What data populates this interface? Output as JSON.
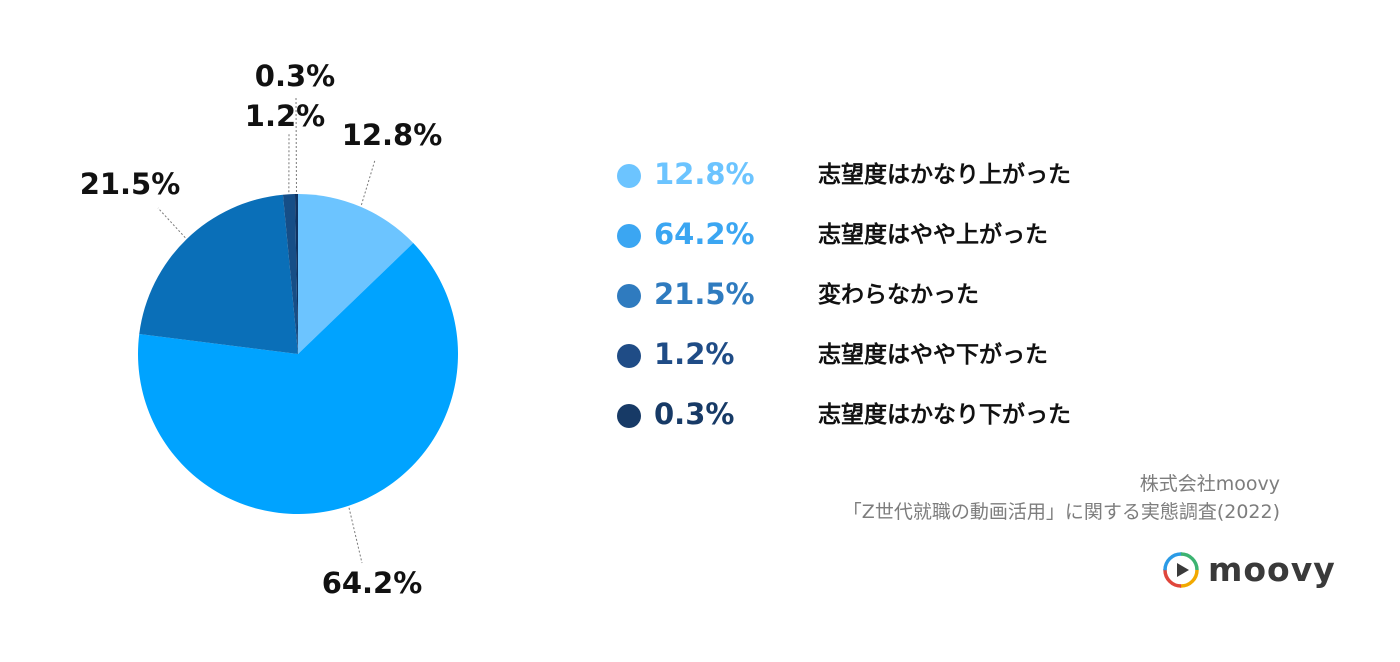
{
  "chart_data": {
    "type": "pie",
    "start_angle_deg": 0,
    "direction": "clockwise",
    "slices": [
      {
        "value": 12.8,
        "label": "12.8%",
        "color": "#6cc4ff",
        "legend_color": "#6cc4ff",
        "name": "志望度はかなり上がった"
      },
      {
        "value": 64.2,
        "label": "64.2%",
        "color": "#00a3ff",
        "legend_color": "#3ba6f2",
        "name": "志望度はやや上がった"
      },
      {
        "value": 21.5,
        "label": "21.5%",
        "color": "#0a6fb8",
        "legend_color": "#2f7bbf",
        "name": "変わらなかった"
      },
      {
        "value": 1.2,
        "label": "1.2%",
        "color": "#164e87",
        "legend_color": "#1f4c86",
        "name": "志望度はやや下がった"
      },
      {
        "value": 0.3,
        "label": "0.3%",
        "color": "#0f3260",
        "legend_color": "#173a66",
        "name": "志望度はかなり下がった"
      }
    ]
  },
  "source": {
    "line1": "株式会社moovy",
    "line2": "「Z世代就職の動画活用」に関する実態調査(2022)"
  },
  "logo": {
    "text": "moovy",
    "icon": "play-circle-icon"
  }
}
